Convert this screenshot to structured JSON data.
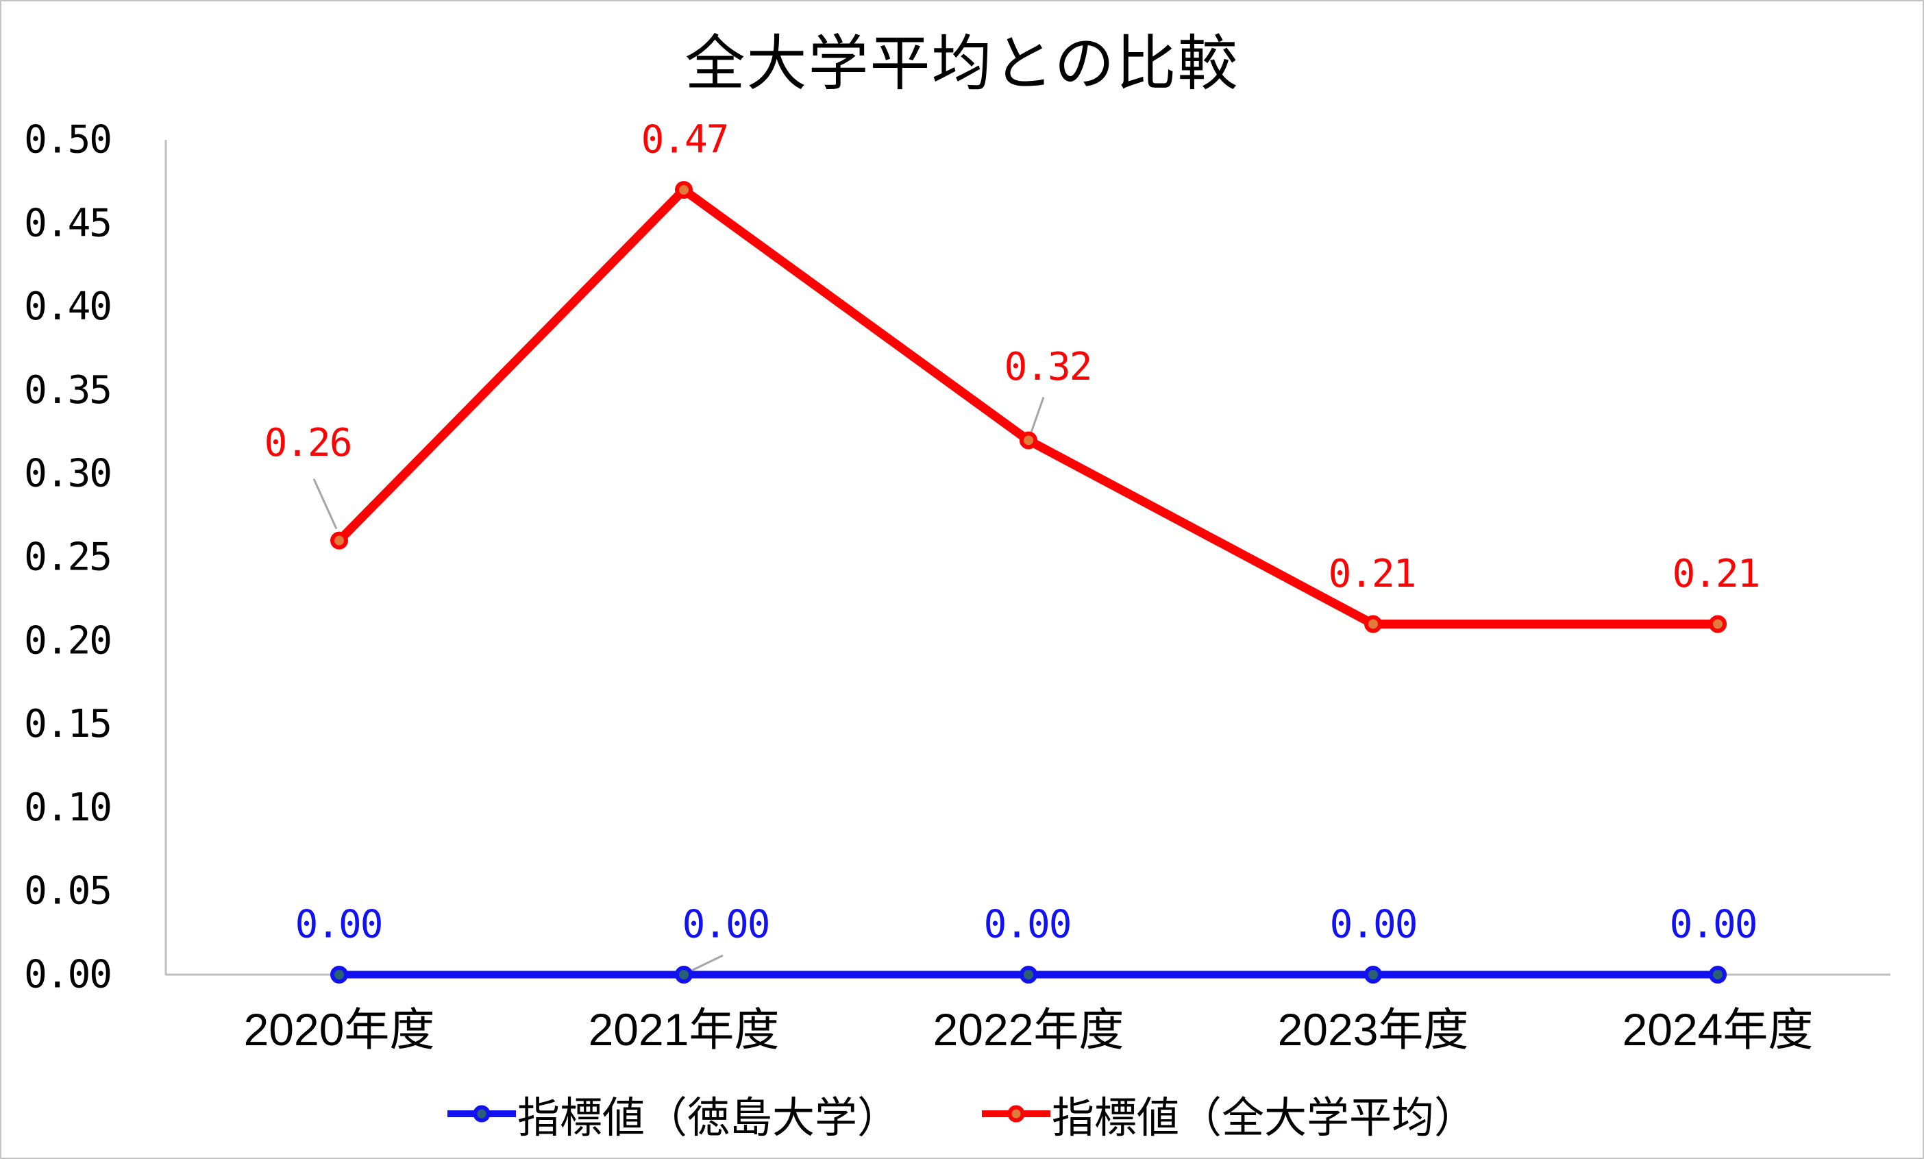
{
  "title": "全大学平均との比較",
  "legend": {
    "items": [
      {
        "label": "指標値（徳島大学）"
      },
      {
        "label": "指標値（全大学平均）"
      }
    ]
  },
  "colors": {
    "background": "#ffffff",
    "frame_border": "#c4c4c4",
    "axis": "#bfbfbf",
    "leader": "#a6a6a6",
    "text": "#000000",
    "series1_line": "#1212f0",
    "series1_marker": "#2a6172",
    "series2_line": "#fc0202",
    "series2_marker": "#e07b3a"
  },
  "chart_data": {
    "type": "line",
    "title": "全大学平均との比較",
    "xlabel": "",
    "ylabel": "",
    "grid": false,
    "legend_position": "bottom",
    "ylim": [
      0,
      0.5
    ],
    "ytick_step": 0.05,
    "categories": [
      "2020年度",
      "2021年度",
      "2022年度",
      "2023年度",
      "2024年度"
    ],
    "yticks": [
      {
        "value": 0.0,
        "label": "0.00"
      },
      {
        "value": 0.05,
        "label": "0.05"
      },
      {
        "value": 0.1,
        "label": "0.10"
      },
      {
        "value": 0.15,
        "label": "0.15"
      },
      {
        "value": 0.2,
        "label": "0.20"
      },
      {
        "value": 0.25,
        "label": "0.25"
      },
      {
        "value": 0.3,
        "label": "0.30"
      },
      {
        "value": 0.35,
        "label": "0.35"
      },
      {
        "value": 0.4,
        "label": "0.40"
      },
      {
        "value": 0.45,
        "label": "0.45"
      },
      {
        "value": 0.5,
        "label": "0.50"
      }
    ],
    "series": [
      {
        "name": "指標値（徳島大学）",
        "values": [
          0.0,
          0.0,
          0.0,
          0.0,
          0.0
        ],
        "line_color": "#1212f0",
        "marker_fill": "#2a6172",
        "data_labels": [
          {
            "text": "0.00",
            "dx": -1,
            "dy": -73
          },
          {
            "text": "0.00",
            "dx": 61,
            "dy": -73,
            "leader": [
              [
                57,
                -28
              ],
              [
                3,
                -2
              ]
            ]
          },
          {
            "text": "0.00",
            "dx": -2,
            "dy": -73
          },
          {
            "text": "0.00",
            "dx": 0,
            "dy": -73
          },
          {
            "text": "0.00",
            "dx": -7,
            "dy": -73
          }
        ]
      },
      {
        "name": "指標値（全大学平均）",
        "values": [
          0.26,
          0.47,
          0.32,
          0.21,
          0.21
        ],
        "line_color": "#fc0202",
        "marker_fill": "#e07b3a",
        "data_labels": [
          {
            "text": "0.26",
            "dx": -46,
            "dy": -142,
            "leader": [
              [
                -37,
                -90
              ],
              [
                -4,
                -17
              ]
            ]
          },
          {
            "text": "0.47",
            "dx": 1,
            "dy": -73
          },
          {
            "text": "0.32",
            "dx": 28,
            "dy": -107,
            "leader": [
              [
                22,
                -63
              ],
              [
                1,
                -3
              ]
            ]
          },
          {
            "text": "0.21",
            "dx": -2,
            "dy": -73
          },
          {
            "text": "0.21",
            "dx": -3,
            "dy": -73
          }
        ]
      }
    ]
  }
}
